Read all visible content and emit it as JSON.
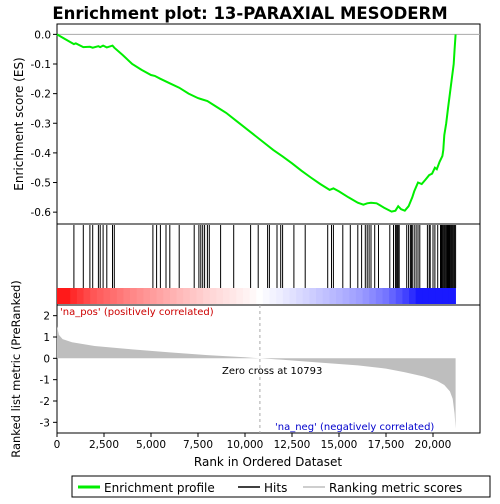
{
  "title": "Enrichment plot: 13-PARAXIAL MESODERM",
  "colors": {
    "profile": "#00ee00",
    "hits": "#000000",
    "metric": "#bebebe",
    "pos_label": "#cc0000",
    "neg_label": "#0000cc",
    "zero_line": "#aaaaaa"
  },
  "chart_data": {
    "type": "line",
    "title": "Enrichment plot: 13-PARAXIAL MESODERM",
    "xlabel": "Rank in Ordered Dataset",
    "xlim": [
      0,
      22500
    ],
    "x_ticks": [
      0,
      2500,
      5000,
      7500,
      10000,
      12500,
      15000,
      17500,
      20000
    ],
    "x_tick_labels": [
      "0",
      "2,500",
      "5,000",
      "7,500",
      "10,000",
      "12,500",
      "15,000",
      "17,500",
      "20,000"
    ],
    "es_panel": {
      "ylabel": "Enrichment score (ES)",
      "ylim": [
        -0.64,
        0.035
      ],
      "y_ticks": [
        0.0,
        -0.1,
        -0.2,
        -0.3,
        -0.4,
        -0.5,
        -0.6
      ],
      "y_tick_labels": [
        "0.0",
        "-0.1",
        "-0.2",
        "-0.3",
        "-0.4",
        "-0.5",
        "-0.6"
      ],
      "series": [
        {
          "name": "Enrichment profile",
          "x": [
            0,
            400,
            900,
            1000,
            1400,
            1750,
            1900,
            2200,
            2300,
            2450,
            2650,
            2950,
            3050,
            3500,
            4000,
            4500,
            5000,
            5200,
            5500,
            6000,
            6500,
            7000,
            7500,
            7650,
            8000,
            8500,
            9000,
            9500,
            10000,
            10500,
            11000,
            11500,
            12000,
            12500,
            13000,
            13500,
            14000,
            14500,
            14700,
            15000,
            15500,
            16000,
            16300,
            16500,
            16700,
            17000,
            17400,
            17800,
            18000,
            18150,
            18300,
            18500,
            18700,
            18900,
            19000,
            19200,
            19400,
            19600,
            19800,
            19950,
            20100,
            20200,
            20350,
            20500,
            20550,
            20600,
            20700,
            20800,
            20900,
            21000,
            21100,
            21150,
            21200
          ],
          "y": [
            0.0,
            -0.015,
            -0.033,
            -0.03,
            -0.043,
            -0.042,
            -0.045,
            -0.04,
            -0.043,
            -0.038,
            -0.044,
            -0.038,
            -0.045,
            -0.07,
            -0.1,
            -0.12,
            -0.137,
            -0.14,
            -0.15,
            -0.165,
            -0.18,
            -0.2,
            -0.215,
            -0.218,
            -0.225,
            -0.245,
            -0.265,
            -0.29,
            -0.315,
            -0.34,
            -0.365,
            -0.39,
            -0.412,
            -0.435,
            -0.46,
            -0.483,
            -0.505,
            -0.525,
            -0.52,
            -0.53,
            -0.55,
            -0.568,
            -0.575,
            -0.57,
            -0.568,
            -0.57,
            -0.585,
            -0.598,
            -0.595,
            -0.58,
            -0.59,
            -0.595,
            -0.58,
            -0.55,
            -0.53,
            -0.5,
            -0.505,
            -0.49,
            -0.475,
            -0.47,
            -0.45,
            -0.455,
            -0.43,
            -0.41,
            -0.39,
            -0.34,
            -0.3,
            -0.25,
            -0.2,
            -0.15,
            -0.1,
            -0.05,
            0.0
          ]
        }
      ]
    },
    "hits": [
      900,
      1400,
      1750,
      1900,
      2200,
      2300,
      2450,
      2650,
      2950,
      3050,
      5100,
      5300,
      5500,
      5800,
      6000,
      6500,
      7300,
      7550,
      7650,
      7750,
      7850,
      8000,
      8100,
      8700,
      9400,
      10300,
      10700,
      11200,
      11300,
      11700,
      11900,
      12000,
      12600,
      13200,
      14400,
      14600,
      14700,
      15200,
      15600,
      16000,
      16200,
      16400,
      16500,
      16600,
      16700,
      16900,
      17100,
      17700,
      17900,
      18000,
      18050,
      18100,
      18150,
      18200,
      18600,
      18700,
      18800,
      18850,
      18900,
      19000,
      19100,
      19200,
      19300,
      19700,
      19800,
      19850,
      20000,
      20100,
      20250,
      20400,
      20450,
      20500,
      20550,
      20600,
      20650,
      20700,
      20750,
      20800,
      20850,
      20900,
      20950,
      21000,
      21050,
      21100,
      21150,
      21200
    ],
    "metric_panel": {
      "ylabel": "Ranked list metric (PreRanked)",
      "ylim": [
        -3.5,
        2.5
      ],
      "y_ticks": [
        2,
        1,
        0,
        -1,
        -2,
        -3
      ],
      "y_tick_labels": [
        "2",
        "1",
        "0",
        "-1",
        "-2",
        "-3"
      ],
      "x": [
        0,
        100,
        300,
        800,
        2000,
        4000,
        6000,
        8000,
        10000,
        10793,
        12000,
        14000,
        16000,
        17500,
        18500,
        19500,
        20200,
        20600,
        20900,
        21050,
        21150,
        21200
      ],
      "values": [
        1.5,
        1.1,
        0.9,
        0.75,
        0.58,
        0.42,
        0.28,
        0.15,
        0.05,
        0.0,
        -0.07,
        -0.2,
        -0.33,
        -0.48,
        -0.65,
        -0.85,
        -1.05,
        -1.25,
        -1.55,
        -1.9,
        -2.6,
        -3.3
      ],
      "zero_cross_rank": 10793,
      "zero_cross_label": "Zero cross at 10793",
      "pos_label": "'na_pos' (positively correlated)",
      "neg_label": "'na_neg' (negatively correlated)"
    },
    "legend": {
      "placement": "bottom",
      "items": [
        {
          "label": "Enrichment profile",
          "color": "#00ee00"
        },
        {
          "label": "Hits",
          "color": "#000000"
        },
        {
          "label": "Ranking metric scores",
          "color": "#bebebe"
        }
      ]
    }
  }
}
